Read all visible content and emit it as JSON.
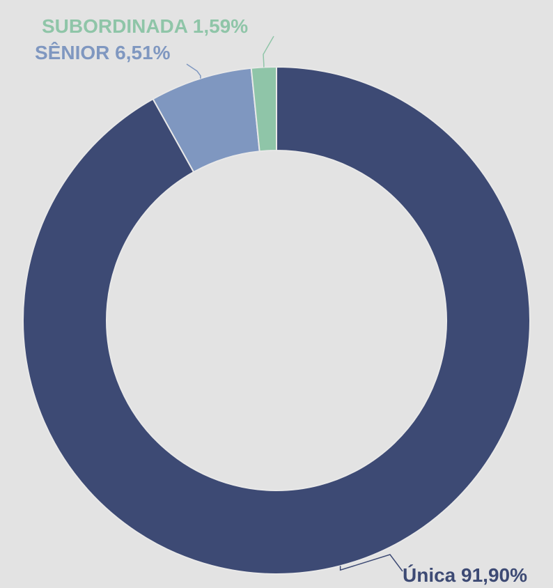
{
  "chart_data": {
    "type": "donut",
    "categories": [
      "Única",
      "SÊNIOR",
      "SUBORDINADA"
    ],
    "values": [
      91.9,
      6.51,
      1.59
    ],
    "value_labels": [
      "91,90%",
      "6,51%",
      "1,59%"
    ],
    "colors": [
      "#3d4a74",
      "#7f97c0",
      "#8fc5a8"
    ]
  }
}
